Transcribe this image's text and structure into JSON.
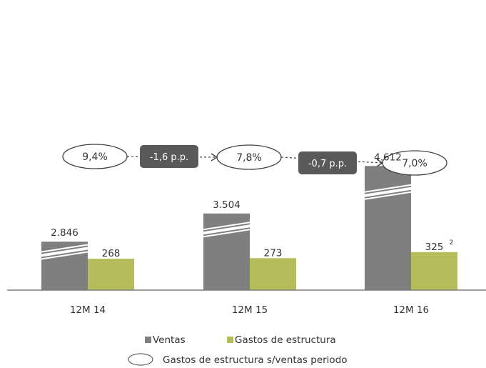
{
  "chart_data": {
    "type": "bar",
    "categories": [
      "12M 14",
      "12M 15",
      "12M 16"
    ],
    "series": [
      {
        "name": "Ventas",
        "values": [
          2846,
          3504,
          4612
        ],
        "labels": [
          "2.846",
          "3.504",
          "4.612"
        ],
        "color": "#7f7f7f"
      },
      {
        "name": "Gastos de estructura",
        "values": [
          268,
          273,
          325
        ],
        "labels": [
          "268",
          "273",
          "325"
        ],
        "color": "#b5bd5a"
      }
    ],
    "axis_break": true,
    "footnote_marker": "2",
    "ratios": [
      {
        "name": "Gastos de estructura s/ventas periodo",
        "values": [
          "9,4%",
          "7,8%",
          "7,0%"
        ]
      }
    ],
    "changes": [
      "-1,6 p.p.",
      "-0,7 p.p."
    ],
    "legend": {
      "items": [
        "Ventas",
        "Gastos de estructura"
      ],
      "ellipse_item": "Gastos de estructura s/ventas periodo",
      "placement": "bottom-center"
    },
    "colors": {
      "ventas": "#7f7f7f",
      "gastos": "#b5bd5a",
      "pill": "#595959",
      "axis": "#7f7f7f"
    }
  }
}
